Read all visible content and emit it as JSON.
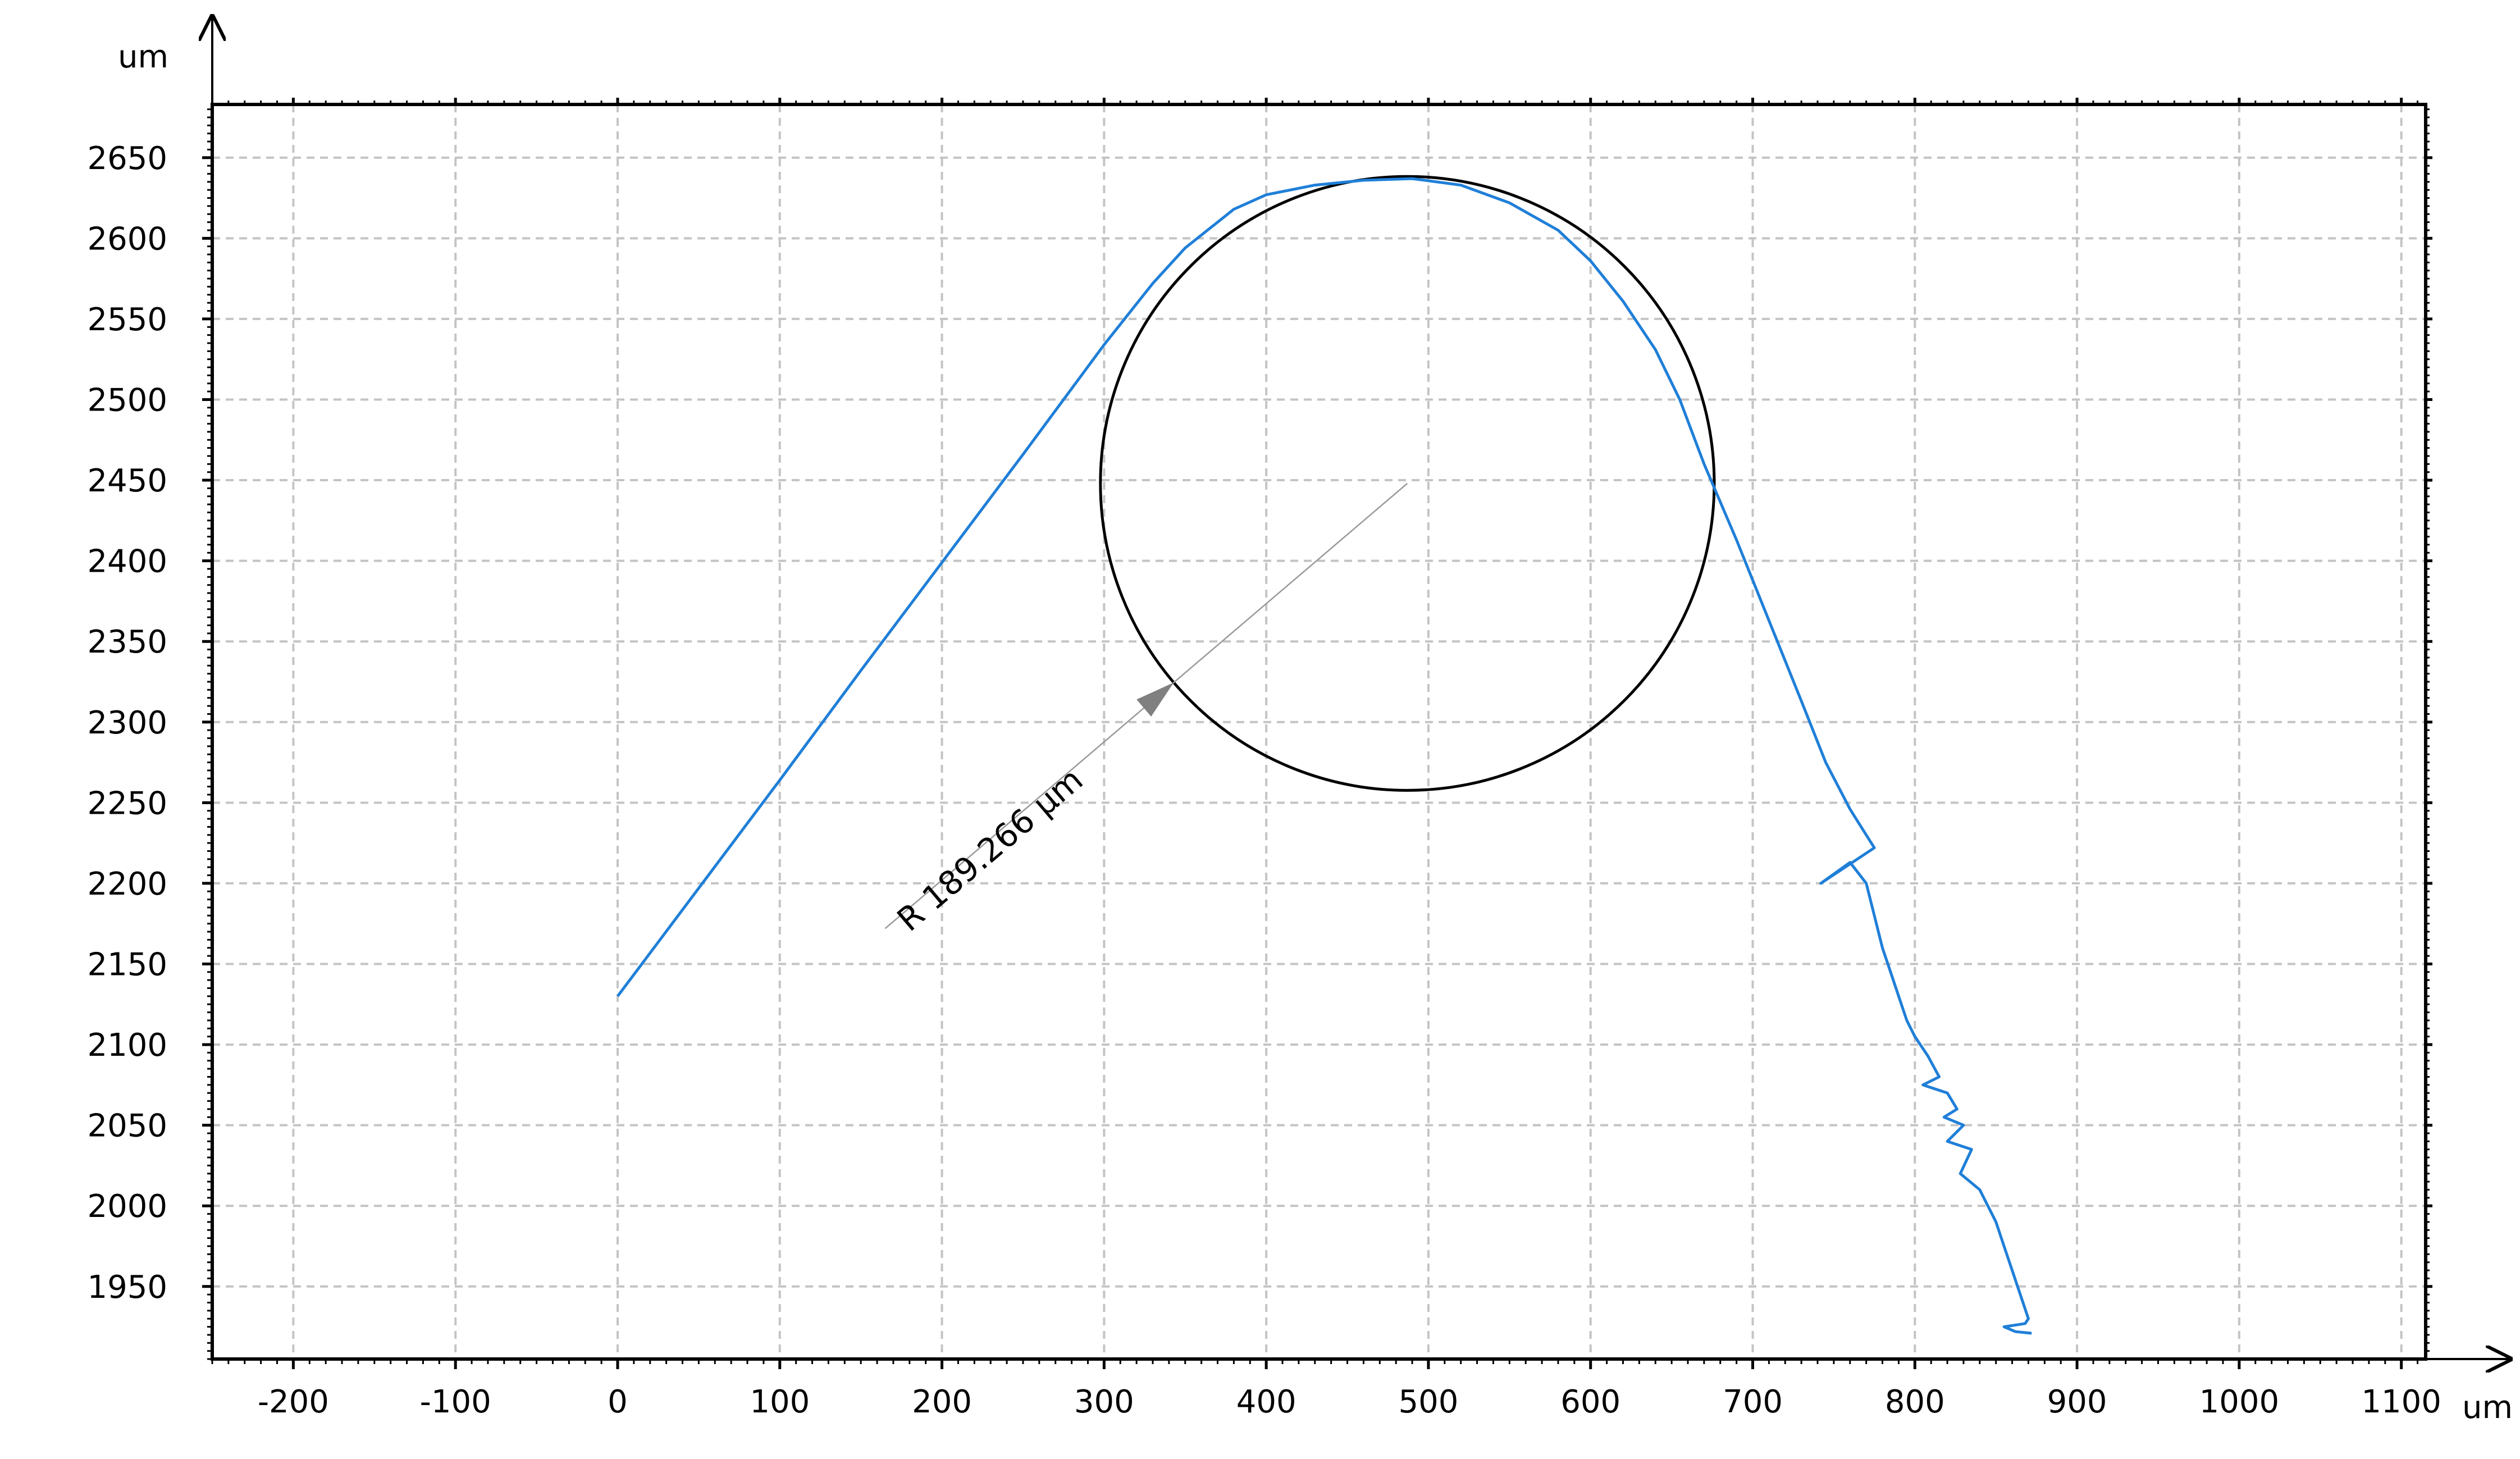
{
  "chart_data": {
    "type": "line",
    "x_unit": "um",
    "y_unit": "um",
    "xlim": [
      -250,
      1115
    ],
    "ylim": [
      1905,
      2683
    ],
    "x_ticks": [
      -200,
      -100,
      0,
      100,
      200,
      300,
      400,
      500,
      600,
      700,
      800,
      900,
      1000,
      1100
    ],
    "y_ticks": [
      1950,
      2000,
      2050,
      2100,
      2150,
      2200,
      2250,
      2300,
      2350,
      2400,
      2450,
      2500,
      2550,
      2600,
      2650
    ],
    "grid": true,
    "series": [
      {
        "color": "#1f7fd8",
        "x": [
          0,
          50,
          100,
          150,
          200,
          250,
          300,
          330,
          350,
          380,
          400,
          430,
          460,
          490,
          520,
          550,
          580,
          600,
          620,
          640,
          655,
          670,
          690,
          710,
          730,
          745,
          760,
          765,
          775,
          742,
          760,
          770,
          775,
          780,
          785,
          790,
          795,
          800,
          808,
          815,
          805,
          820,
          826,
          818,
          830,
          820,
          835,
          828,
          840,
          845,
          850,
          855,
          860,
          865,
          870,
          868,
          855,
          862,
          872
        ],
        "y": [
          2130,
          2197,
          2264,
          2332,
          2399,
          2466,
          2534,
          2572,
          2594,
          2618,
          2627,
          2633,
          2636,
          2637,
          2633,
          2622,
          2605,
          2586,
          2561,
          2531,
          2500,
          2460,
          2413,
          2363,
          2313,
          2275,
          2246,
          2238,
          2222,
          2200,
          2213,
          2200,
          2180,
          2160,
          2145,
          2130,
          2115,
          2105,
          2093,
          2080,
          2075,
          2070,
          2060,
          2055,
          2050,
          2040,
          2035,
          2020,
          2010,
          2000,
          1990,
          1975,
          1960,
          1945,
          1930,
          1927,
          1925,
          1922,
          1921
        ]
      }
    ],
    "fit_circle": {
      "center": [
        487,
        2448
      ],
      "radius": 189.266
    },
    "annotation": {
      "text": "R 189.266 µm",
      "arrow_from": [
        165,
        2172
      ],
      "arrow_to": [
        487,
        2448
      ]
    }
  }
}
